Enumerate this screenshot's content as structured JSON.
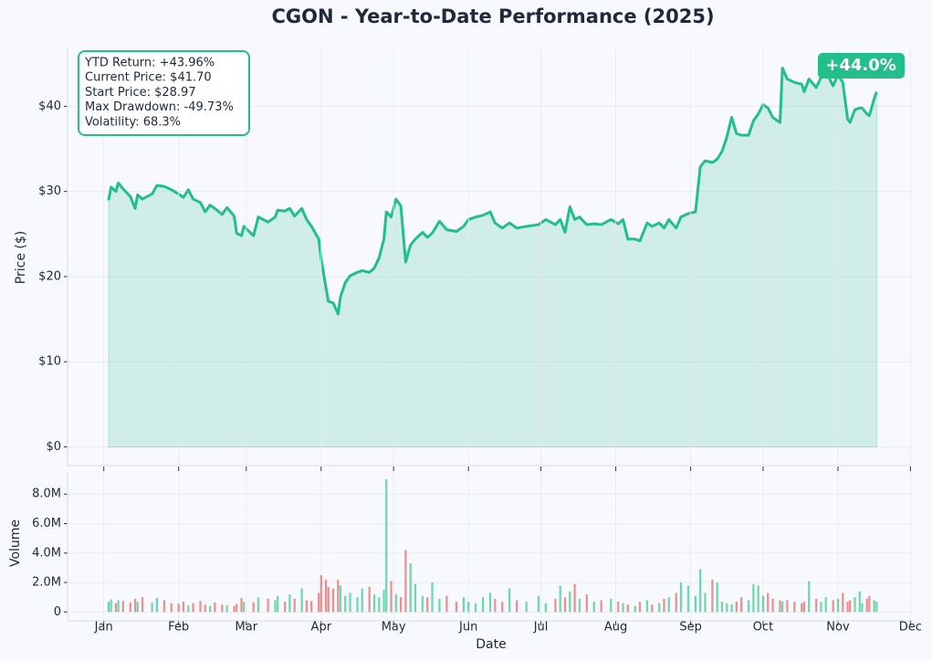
{
  "chart_data": [
    {
      "type": "line",
      "title": "CGON - Year-to-Date Performance (2025)",
      "ylabel": "Price ($)",
      "stats": [
        "YTD Return: +43.96%",
        "Current Price: $41.70",
        "Start Price: $28.97",
        "Max Drawdown: -49.73%",
        "Volatility: 68.3%"
      ],
      "badge": "+44.0%",
      "color": "#22bf8a",
      "grid": true,
      "xlim": [
        -15,
        335
      ],
      "ylim": [
        -2.2,
        46.8
      ],
      "yticks": [
        {
          "value": 0,
          "label": "$0"
        },
        {
          "value": 10,
          "label": "$10"
        },
        {
          "value": 20,
          "label": "$20"
        },
        {
          "value": 30,
          "label": "$30"
        },
        {
          "value": 40,
          "label": "$40"
        }
      ],
      "x": [
        2,
        3,
        5,
        6,
        8,
        11,
        13,
        14,
        16,
        20,
        22,
        25,
        28,
        31,
        33,
        35,
        37,
        40,
        42,
        44,
        46,
        49,
        51,
        54,
        55,
        57,
        58,
        62,
        64,
        68,
        71,
        72,
        75,
        77,
        79,
        82,
        84,
        86,
        89,
        90,
        92,
        93,
        95,
        97,
        98,
        100,
        102,
        105,
        107,
        110,
        112,
        114,
        116,
        117,
        119,
        121,
        123,
        125,
        127,
        129,
        132,
        134,
        136,
        139,
        142,
        146,
        149,
        151,
        154,
        157,
        160,
        162,
        165,
        168,
        171,
        175,
        180,
        183,
        187,
        189,
        191,
        193,
        195,
        197,
        200,
        203,
        206,
        210,
        213,
        215,
        217,
        220,
        222,
        225,
        227,
        230,
        232,
        234,
        237,
        239,
        242,
        245,
        247,
        249,
        252,
        254,
        256,
        258,
        260,
        262,
        264,
        267,
        269,
        271,
        273,
        275,
        277,
        280,
        281,
        283,
        286,
        289,
        290,
        292,
        295,
        297,
        299,
        302,
        304,
        306,
        308,
        309,
        311,
        313,
        314,
        316,
        317,
        319,
        320
      ],
      "values": [
        28.97,
        30.5,
        30.0,
        31.0,
        30.3,
        29.4,
        28.0,
        29.6,
        29.1,
        29.7,
        30.7,
        30.6,
        30.2,
        29.7,
        29.3,
        30.2,
        29.1,
        28.7,
        27.6,
        28.4,
        28.0,
        27.3,
        28.1,
        27.1,
        25.1,
        24.8,
        25.9,
        24.8,
        27.0,
        26.4,
        27.0,
        27.8,
        27.7,
        28.0,
        27.1,
        28.0,
        26.7,
        25.9,
        24.4,
        22.1,
        18.7,
        17.1,
        16.9,
        15.6,
        17.6,
        19.3,
        20.1,
        20.5,
        20.7,
        20.5,
        21.0,
        22.2,
        24.4,
        27.6,
        27.0,
        29.1,
        28.3,
        21.7,
        23.7,
        24.4,
        25.2,
        24.6,
        25.1,
        26.5,
        25.5,
        25.3,
        25.9,
        26.7,
        27.0,
        27.2,
        27.6,
        26.3,
        25.7,
        26.3,
        25.7,
        25.9,
        26.1,
        26.7,
        26.1,
        26.7,
        25.2,
        28.2,
        26.7,
        27.0,
        26.1,
        26.2,
        26.1,
        26.7,
        26.2,
        26.7,
        24.4,
        24.4,
        24.2,
        26.3,
        25.9,
        26.3,
        25.7,
        26.7,
        25.7,
        27.0,
        27.4,
        27.6,
        32.9,
        33.6,
        33.4,
        33.8,
        34.7,
        36.4,
        38.7,
        36.8,
        36.6,
        36.6,
        38.3,
        39.1,
        40.2,
        39.8,
        38.7,
        38.1,
        44.5,
        43.2,
        42.8,
        42.6,
        41.7,
        43.2,
        42.2,
        43.4,
        44.1,
        42.4,
        43.7,
        42.8,
        38.5,
        38.1,
        39.6,
        39.8,
        39.8,
        39.1,
        38.9,
        40.9,
        41.7
      ]
    },
    {
      "type": "bar",
      "ylabel": "Volume",
      "xlabel": "Date",
      "grid": true,
      "up_color": "#5fd3a6",
      "down_color": "#e98383",
      "xlim": [
        -15,
        335
      ],
      "xticks": [
        {
          "value": 0,
          "label": "Jan"
        },
        {
          "value": 31,
          "label": "Feb"
        },
        {
          "value": 59,
          "label": "Mar"
        },
        {
          "value": 90,
          "label": "Apr"
        },
        {
          "value": 120,
          "label": "May"
        },
        {
          "value": 151,
          "label": "Jun"
        },
        {
          "value": 181,
          "label": "Jul"
        },
        {
          "value": 212,
          "label": "Aug"
        },
        {
          "value": 243,
          "label": "Sep"
        },
        {
          "value": 273,
          "label": "Oct"
        },
        {
          "value": 304,
          "label": "Nov"
        },
        {
          "value": 334,
          "label": "Dec"
        }
      ],
      "ylim": [
        -600000,
        9500000
      ],
      "yticks": [
        0,
        {
          "value": 2000000,
          "label": "2.0M"
        },
        {
          "value": 4000000,
          "label": "4.0M"
        },
        {
          "value": 6000000,
          "label": "6.0M"
        },
        {
          "value": 8000000,
          "label": "8.0M"
        }
      ],
      "x": [
        2,
        3,
        5,
        6,
        8,
        11,
        13,
        14,
        16,
        20,
        22,
        25,
        28,
        31,
        33,
        35,
        37,
        40,
        42,
        44,
        46,
        49,
        51,
        54,
        55,
        57,
        58,
        62,
        64,
        68,
        71,
        72,
        75,
        77,
        79,
        82,
        84,
        86,
        89,
        90,
        92,
        93,
        95,
        97,
        98,
        100,
        102,
        105,
        107,
        110,
        112,
        114,
        116,
        117,
        119,
        121,
        123,
        125,
        127,
        129,
        132,
        134,
        136,
        139,
        142,
        146,
        149,
        151,
        154,
        157,
        160,
        162,
        165,
        168,
        171,
        175,
        180,
        183,
        187,
        189,
        191,
        193,
        195,
        197,
        200,
        203,
        206,
        210,
        213,
        215,
        217,
        220,
        222,
        225,
        227,
        230,
        232,
        234,
        237,
        239,
        242,
        245,
        247,
        249,
        252,
        254,
        256,
        258,
        260,
        262,
        264,
        267,
        269,
        271,
        273,
        275,
        277,
        280,
        281,
        283,
        286,
        289,
        290,
        292,
        295,
        297,
        299,
        302,
        304,
        306,
        308,
        309,
        311,
        313,
        314,
        316,
        317,
        319,
        320
      ],
      "values": [
        700000,
        850000,
        600000,
        800000,
        750000,
        650000,
        900000,
        700000,
        1000000,
        650000,
        950000,
        800000,
        600000,
        550000,
        700000,
        450000,
        600000,
        750000,
        500000,
        400000,
        650000,
        500000,
        450000,
        400000,
        550000,
        950000,
        700000,
        650000,
        1000000,
        900000,
        800000,
        1100000,
        700000,
        1200000,
        900000,
        1600000,
        800000,
        750000,
        1300000,
        2500000,
        2200000,
        1700000,
        1600000,
        2200000,
        1800000,
        1100000,
        1300000,
        1000000,
        1600000,
        1700000,
        1200000,
        1000000,
        1500000,
        9000000,
        2100000,
        1200000,
        1000000,
        4200000,
        3300000,
        1900000,
        1100000,
        1000000,
        2000000,
        900000,
        1100000,
        700000,
        1000000,
        700000,
        600000,
        1000000,
        1300000,
        900000,
        700000,
        1600000,
        800000,
        700000,
        1100000,
        600000,
        900000,
        1800000,
        1000000,
        1400000,
        1900000,
        900000,
        1200000,
        700000,
        800000,
        900000,
        700000,
        600000,
        500000,
        400000,
        700000,
        800000,
        500000,
        600000,
        900000,
        1000000,
        1300000,
        2000000,
        1800000,
        1100000,
        2900000,
        1300000,
        2200000,
        2000000,
        700000,
        600000,
        500000,
        700000,
        1000000,
        800000,
        1900000,
        1800000,
        1100000,
        1300000,
        900000,
        800000,
        700000,
        800000,
        700000,
        600000,
        700000,
        2100000,
        900000,
        700000,
        1000000,
        800000,
        900000,
        1300000,
        700000,
        800000,
        1000000,
        1400000,
        600000,
        900000,
        1100000,
        800000,
        700000
      ]
    }
  ]
}
